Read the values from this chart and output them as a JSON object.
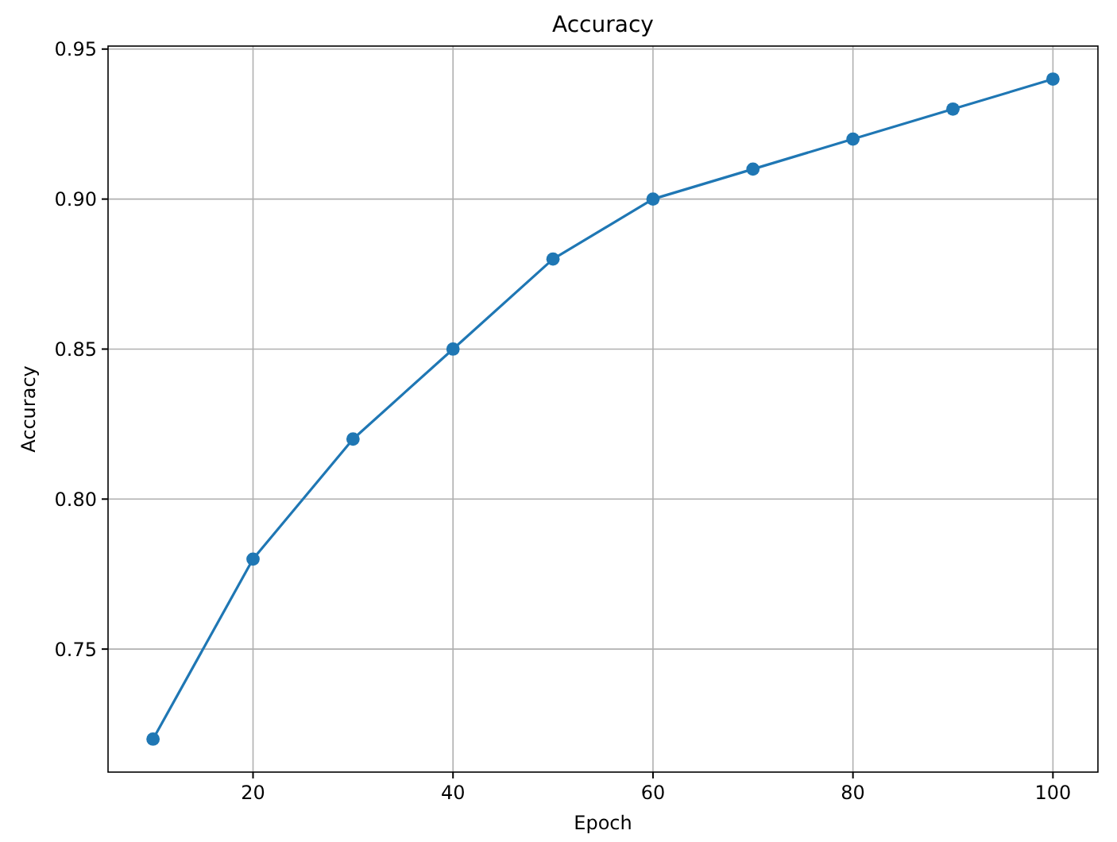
{
  "chart_data": {
    "type": "line",
    "title": "Accuracy",
    "xlabel": "Epoch",
    "ylabel": "Accuracy",
    "x": [
      10,
      20,
      30,
      40,
      50,
      60,
      70,
      80,
      90,
      100
    ],
    "series": [
      {
        "color": "#1f77b4",
        "values": [
          0.72,
          0.78,
          0.82,
          0.85,
          0.88,
          0.9,
          0.91,
          0.92,
          0.93,
          0.94
        ]
      }
    ],
    "xlim": [
      5.5,
      104.5
    ],
    "ylim": [
      0.709,
      0.951
    ],
    "xticks": [
      20,
      40,
      60,
      80,
      100
    ],
    "yticks": [
      {
        "value": 0.75,
        "label": "0.75"
      },
      {
        "value": 0.8,
        "label": "0.80"
      },
      {
        "value": 0.85,
        "label": "0.85"
      },
      {
        "value": 0.9,
        "label": "0.90"
      },
      {
        "value": 0.95,
        "label": "0.95"
      }
    ],
    "grid": true,
    "marker": "circle",
    "line_style": "solid"
  }
}
